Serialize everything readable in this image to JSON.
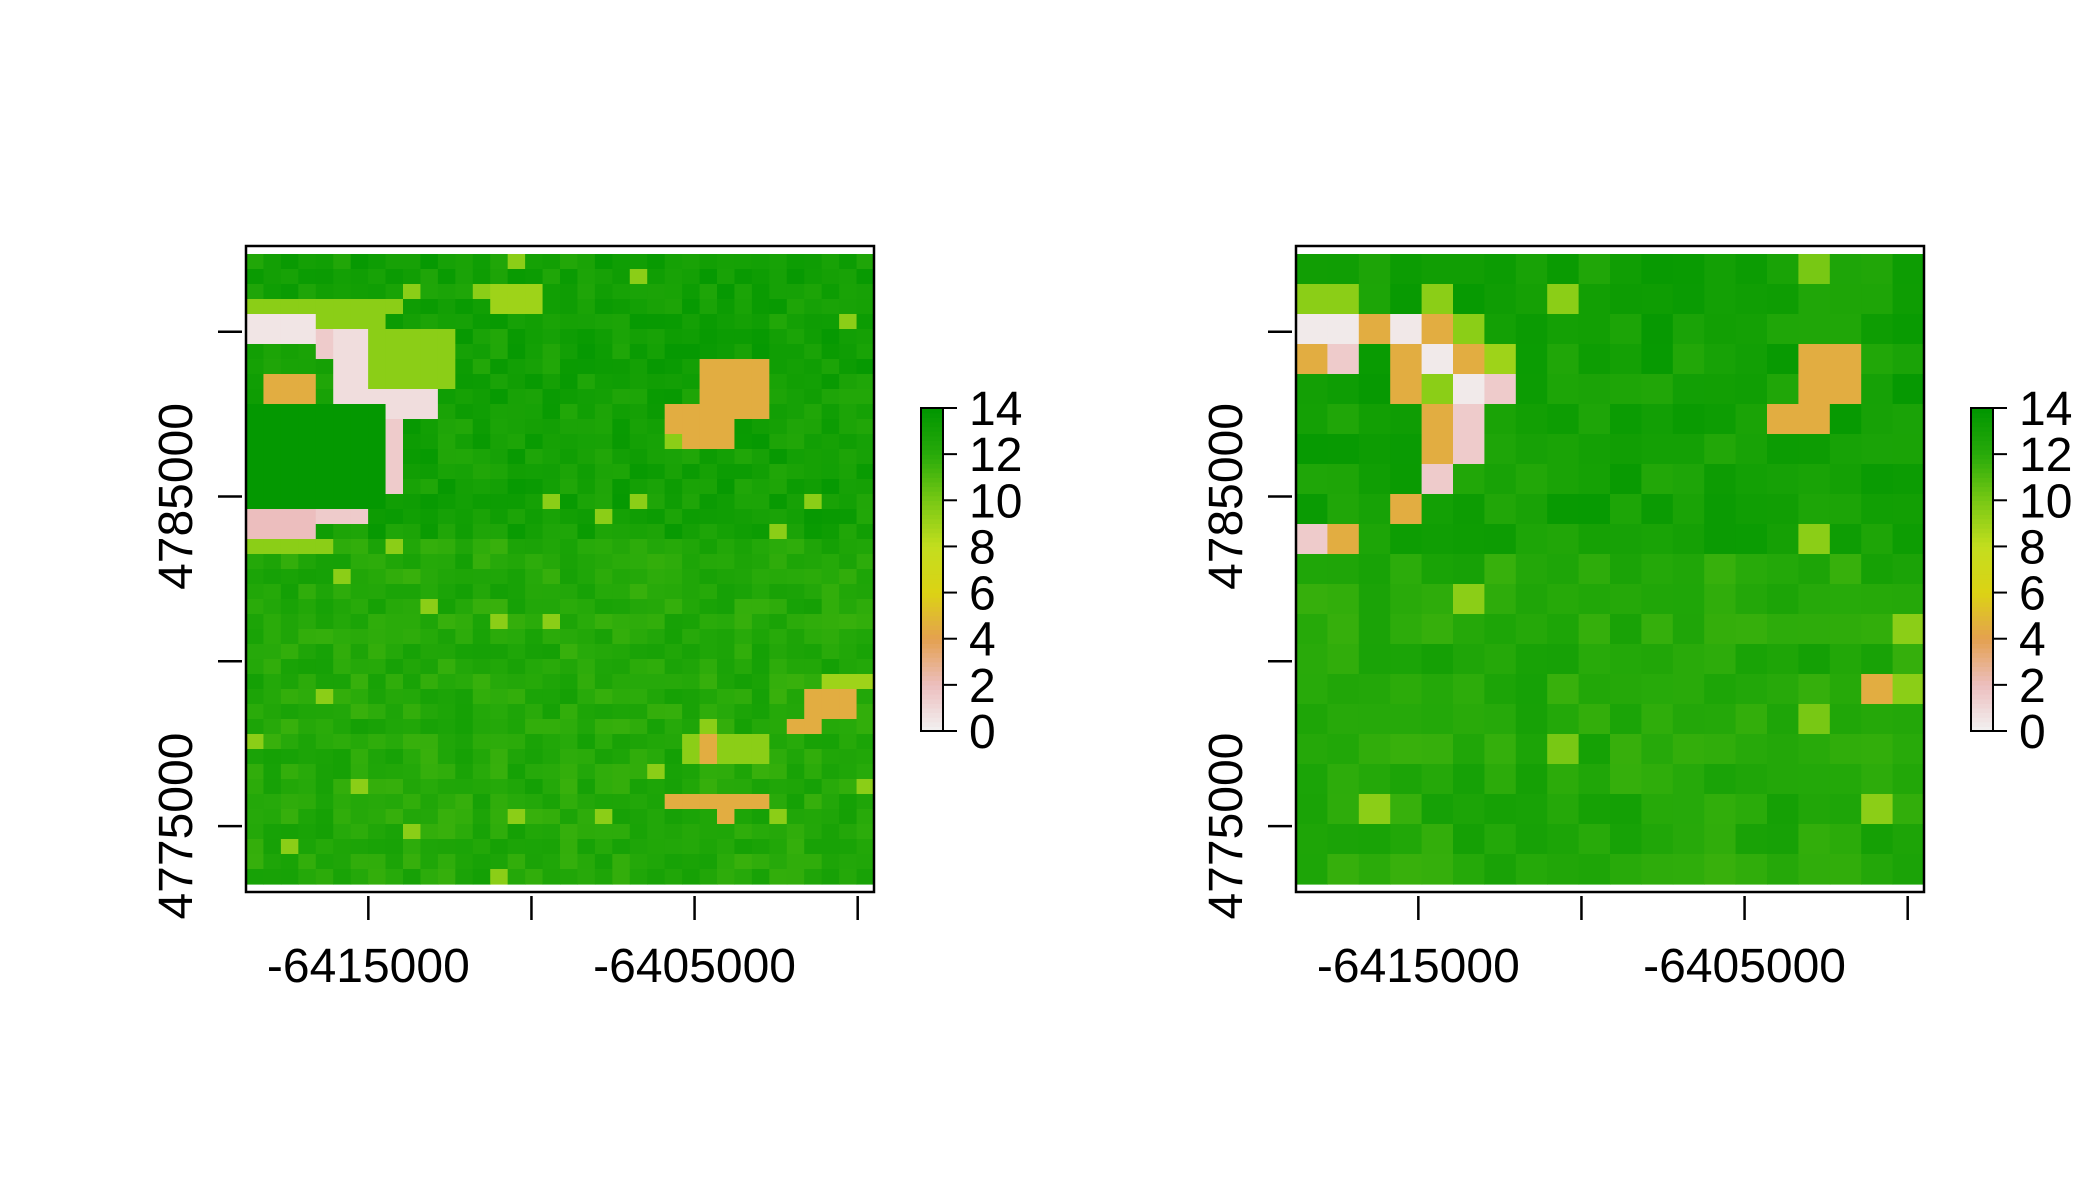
{
  "chart_data": [
    {
      "type": "heatmap",
      "title": "",
      "xlabel": "",
      "ylabel": "",
      "resolution": "fine",
      "grid_size": [
        36,
        42
      ],
      "xlim": [
        -6418750,
        -6399500
      ],
      "ylim": [
        4773000,
        4792600
      ],
      "x_ticks": [
        -6415000,
        -6410000,
        -6405000,
        -6400000
      ],
      "x_tick_labels": [
        "-6415000",
        "",
        "-6405000",
        ""
      ],
      "y_ticks": [
        4775000,
        4780000,
        4785000,
        4790000
      ],
      "y_tick_labels": [
        "4775000",
        "",
        "4785000",
        ""
      ],
      "value_range": [
        0,
        14
      ],
      "legend_ticks": [
        "0",
        "2",
        "4",
        "6",
        "8",
        "10",
        "12",
        "14"
      ],
      "features": [
        {
          "kind": "rect",
          "x": [
            0.0,
            0.22
          ],
          "y": [
            0.08,
            0.15
          ],
          "v": 9.5
        },
        {
          "kind": "rect",
          "x": [
            0.0,
            0.1
          ],
          "y": [
            0.1,
            0.14
          ],
          "v": 0.5
        },
        {
          "kind": "rect",
          "x": [
            0.1,
            0.16
          ],
          "y": [
            0.11,
            0.17
          ],
          "v": 1.5
        },
        {
          "kind": "rect",
          "x": [
            0.04,
            0.12
          ],
          "y": [
            0.18,
            0.25
          ],
          "v": 4.5
        },
        {
          "kind": "rect",
          "x": [
            0.15,
            0.3
          ],
          "y": [
            0.12,
            0.26
          ],
          "v": 0.8
        },
        {
          "kind": "rect",
          "x": [
            0.2,
            0.32
          ],
          "y": [
            0.12,
            0.22
          ],
          "v": 9.5
        },
        {
          "kind": "rect",
          "x": [
            0.2,
            0.26
          ],
          "y": [
            0.26,
            0.38
          ],
          "v": 1.5
        },
        {
          "kind": "rect",
          "x": [
            0.12,
            0.2
          ],
          "y": [
            0.36,
            0.42
          ],
          "v": 1.5
        },
        {
          "kind": "rect",
          "x": [
            0.0,
            0.1
          ],
          "y": [
            0.41,
            0.46
          ],
          "v": 2.0
        },
        {
          "kind": "rect",
          "x": [
            0.0,
            0.14
          ],
          "y": [
            0.45,
            0.48
          ],
          "v": 9.5
        },
        {
          "kind": "rect",
          "x": [
            0.0,
            0.22
          ],
          "y": [
            0.24,
            0.4
          ],
          "v": 13.8
        },
        {
          "kind": "rect",
          "x": [
            0.72,
            0.84
          ],
          "y": [
            0.16,
            0.26
          ],
          "v": 4.5
        },
        {
          "kind": "rect",
          "x": [
            0.7,
            0.78
          ],
          "y": [
            0.25,
            0.3
          ],
          "v": 4.5
        },
        {
          "kind": "rect",
          "x": [
            0.67,
            0.71
          ],
          "y": [
            0.25,
            0.28
          ],
          "v": 4.5
        },
        {
          "kind": "rect",
          "x": [
            0.93,
            1.0
          ],
          "y": [
            0.67,
            0.7
          ],
          "v": 9.0
        },
        {
          "kind": "rect",
          "x": [
            0.89,
            0.96
          ],
          "y": [
            0.7,
            0.73
          ],
          "v": 4.5
        },
        {
          "kind": "rect",
          "x": [
            0.87,
            0.92
          ],
          "y": [
            0.73,
            0.77
          ],
          "v": 4.5
        },
        {
          "kind": "rect",
          "x": [
            0.66,
            0.83
          ],
          "y": [
            0.86,
            0.89
          ],
          "v": 4.5
        },
        {
          "kind": "rect",
          "x": [
            0.76,
            0.79
          ],
          "y": [
            0.89,
            0.91
          ],
          "v": 4.5
        },
        {
          "kind": "rect",
          "x": [
            0.7,
            0.84
          ],
          "y": [
            0.77,
            0.8
          ],
          "v": 9.5
        },
        {
          "kind": "rect",
          "x": [
            0.73,
            0.76
          ],
          "y": [
            0.77,
            0.8
          ],
          "v": 4.5
        },
        {
          "kind": "rect",
          "x": [
            0.6,
            0.63
          ],
          "y": [
            0.92,
            0.94
          ],
          "v": 4.5
        },
        {
          "kind": "rect",
          "x": [
            0.82,
            0.85
          ],
          "y": [
            0.42,
            0.44
          ],
          "v": 4.5
        },
        {
          "kind": "rect",
          "x": [
            0.39,
            0.48
          ],
          "y": [
            0.05,
            0.09
          ],
          "v": 9.0
        }
      ]
    },
    {
      "type": "heatmap",
      "title": "",
      "xlabel": "",
      "ylabel": "",
      "resolution": "coarse",
      "grid_size": [
        20,
        21
      ],
      "xlim": [
        -6418750,
        -6399500
      ],
      "ylim": [
        4773000,
        4792600
      ],
      "x_ticks": [
        -6415000,
        -6410000,
        -6405000,
        -6400000
      ],
      "x_tick_labels": [
        "-6415000",
        "",
        "-6405000",
        ""
      ],
      "y_ticks": [
        4775000,
        4780000,
        4785000,
        4790000
      ],
      "y_tick_labels": [
        "4775000",
        "",
        "4785000",
        ""
      ],
      "value_range": [
        0,
        14
      ],
      "legend_ticks": [
        "0",
        "2",
        "4",
        "6",
        "8",
        "10",
        "12",
        "14"
      ],
      "cells": [
        [
          0,
          1,
          9.5
        ],
        [
          1,
          1,
          9.5
        ],
        [
          0,
          2,
          0.3
        ],
        [
          1,
          2,
          0.3
        ],
        [
          2,
          2,
          4.5
        ],
        [
          3,
          2,
          0.4
        ],
        [
          4,
          2,
          4.5
        ],
        [
          5,
          2,
          9.5
        ],
        [
          0,
          3,
          4.5
        ],
        [
          1,
          3,
          1.5
        ],
        [
          3,
          3,
          4.5
        ],
        [
          4,
          3,
          0.3
        ],
        [
          5,
          3,
          4.5
        ],
        [
          6,
          3,
          9.0
        ],
        [
          3,
          4,
          4.5
        ],
        [
          4,
          4,
          9.5
        ],
        [
          5,
          4,
          0.3
        ],
        [
          6,
          4,
          1.5
        ],
        [
          4,
          5,
          4.5
        ],
        [
          5,
          5,
          1.5
        ],
        [
          4,
          6,
          4.5
        ],
        [
          5,
          6,
          1.5
        ],
        [
          4,
          7,
          1.5
        ],
        [
          3,
          8,
          4.5
        ],
        [
          0,
          9,
          1.5
        ],
        [
          1,
          9,
          4.5
        ],
        [
          8,
          1,
          9.5
        ],
        [
          16,
          0,
          10.0
        ],
        [
          17,
          0,
          12.5
        ],
        [
          16,
          3,
          4.5
        ],
        [
          17,
          3,
          4.5
        ],
        [
          16,
          4,
          4.5
        ],
        [
          17,
          4,
          4.5
        ],
        [
          15,
          5,
          4.5
        ],
        [
          16,
          5,
          4.5
        ],
        [
          16,
          9,
          9.5
        ],
        [
          18,
          14,
          4.5
        ],
        [
          16,
          15,
          10.0
        ],
        [
          8,
          16,
          10.0
        ],
        [
          18,
          18,
          9.5
        ],
        [
          17,
          18,
          12.5
        ]
      ]
    }
  ]
}
